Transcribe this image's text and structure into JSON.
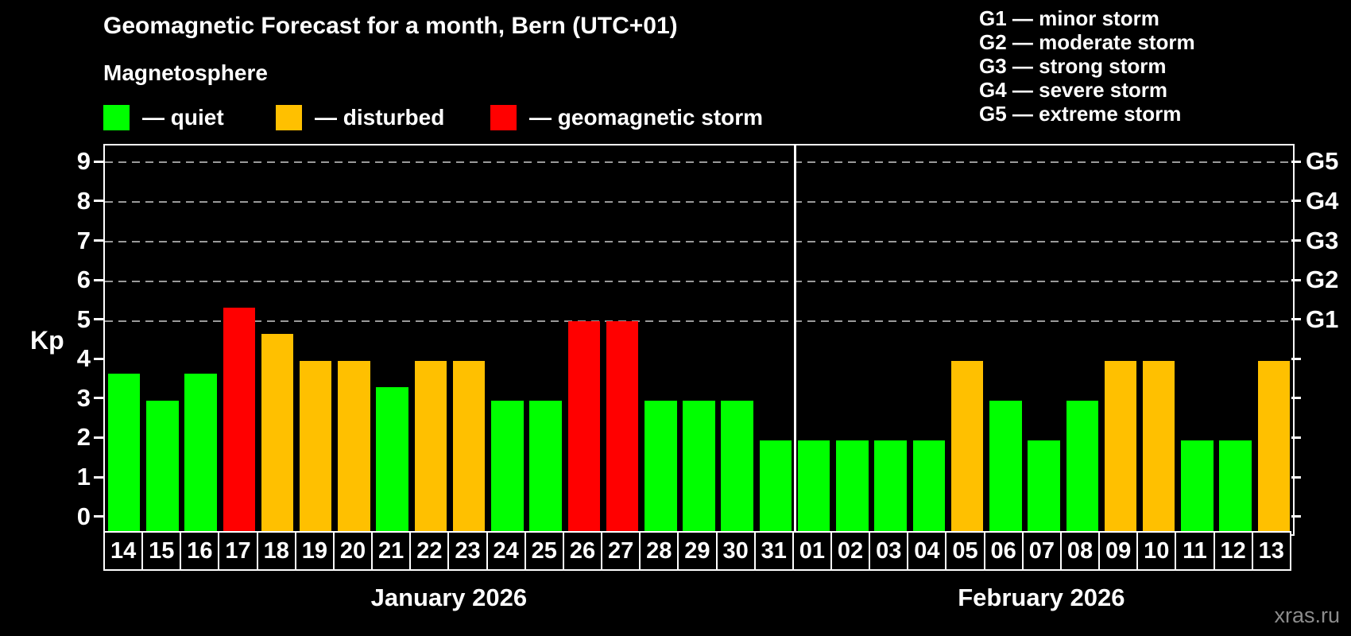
{
  "title": "Geomagnetic Forecast for a month, Bern (UTC+01)",
  "subtitle": "Magnetosphere",
  "legend": {
    "quiet_label": "— quiet",
    "disturbed_label": "— disturbed",
    "storm_label": "— geomagnetic storm"
  },
  "g_legend": [
    "G1 — minor storm",
    "G2 — moderate storm",
    "G3 — strong storm",
    "G4 — severe storm",
    "G5 — extreme storm"
  ],
  "colors": {
    "quiet": "#00ff00",
    "disturbed": "#ffc000",
    "storm": "#ff0000",
    "axis": "#ffffff",
    "grid": "#9a9a9a",
    "watermark": "#8c8c8c",
    "background": "#000000"
  },
  "watermark": "xras.ru",
  "chart_data": {
    "type": "bar",
    "title": "Geomagnetic Forecast for a month, Bern (UTC+01)",
    "ylabel": "Kp",
    "ylim": [
      0,
      9
    ],
    "yticks": [
      0,
      1,
      2,
      3,
      4,
      5,
      6,
      7,
      8,
      9
    ],
    "gridlines": [
      5,
      6,
      7,
      8,
      9
    ],
    "grid": "horizontal dashed lines at storm levels G1–G5",
    "legend_position": "top-left",
    "right_axis": [
      {
        "kp": 5,
        "label": "G1"
      },
      {
        "kp": 6,
        "label": "G2"
      },
      {
        "kp": 7,
        "label": "G3"
      },
      {
        "kp": 8,
        "label": "G4"
      },
      {
        "kp": 9,
        "label": "G5"
      }
    ],
    "months": [
      {
        "label": "January 2026",
        "days": [
          {
            "day": "14",
            "kp": 3.67,
            "status": "quiet"
          },
          {
            "day": "15",
            "kp": 3.0,
            "status": "quiet"
          },
          {
            "day": "16",
            "kp": 3.67,
            "status": "quiet"
          },
          {
            "day": "17",
            "kp": 5.33,
            "status": "storm"
          },
          {
            "day": "18",
            "kp": 4.67,
            "status": "disturbed"
          },
          {
            "day": "19",
            "kp": 4.0,
            "status": "disturbed"
          },
          {
            "day": "20",
            "kp": 4.0,
            "status": "disturbed"
          },
          {
            "day": "21",
            "kp": 3.33,
            "status": "quiet"
          },
          {
            "day": "22",
            "kp": 4.0,
            "status": "disturbed"
          },
          {
            "day": "23",
            "kp": 4.0,
            "status": "disturbed"
          },
          {
            "day": "24",
            "kp": 3.0,
            "status": "quiet"
          },
          {
            "day": "25",
            "kp": 3.0,
            "status": "quiet"
          },
          {
            "day": "26",
            "kp": 5.0,
            "status": "storm"
          },
          {
            "day": "27",
            "kp": 5.0,
            "status": "storm"
          },
          {
            "day": "28",
            "kp": 3.0,
            "status": "quiet"
          },
          {
            "day": "29",
            "kp": 3.0,
            "status": "quiet"
          },
          {
            "day": "30",
            "kp": 3.0,
            "status": "quiet"
          },
          {
            "day": "31",
            "kp": 2.0,
            "status": "quiet"
          }
        ]
      },
      {
        "label": "February 2026",
        "days": [
          {
            "day": "01",
            "kp": 2.0,
            "status": "quiet"
          },
          {
            "day": "02",
            "kp": 2.0,
            "status": "quiet"
          },
          {
            "day": "03",
            "kp": 2.0,
            "status": "quiet"
          },
          {
            "day": "04",
            "kp": 2.0,
            "status": "quiet"
          },
          {
            "day": "05",
            "kp": 4.0,
            "status": "disturbed"
          },
          {
            "day": "06",
            "kp": 3.0,
            "status": "quiet"
          },
          {
            "day": "07",
            "kp": 2.0,
            "status": "quiet"
          },
          {
            "day": "08",
            "kp": 3.0,
            "status": "quiet"
          },
          {
            "day": "09",
            "kp": 4.0,
            "status": "disturbed"
          },
          {
            "day": "10",
            "kp": 4.0,
            "status": "disturbed"
          },
          {
            "day": "11",
            "kp": 2.0,
            "status": "quiet"
          },
          {
            "day": "12",
            "kp": 2.0,
            "status": "quiet"
          },
          {
            "day": "13",
            "kp": 4.0,
            "status": "disturbed"
          }
        ]
      }
    ]
  }
}
